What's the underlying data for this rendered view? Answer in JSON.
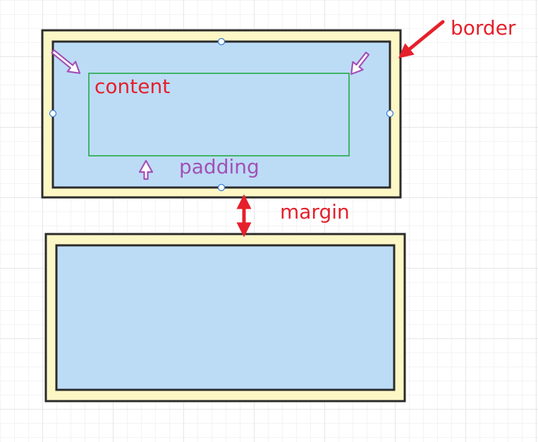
{
  "diagram": {
    "labels": {
      "border": "border",
      "content": "content",
      "padding": "padding",
      "margin": "margin"
    },
    "icons": {
      "border_arrow": "arrow-icon",
      "padding_arrows": "hollow-arrow-icon",
      "margin_arrow": "double-arrow-icon",
      "selection_handles": "circle-handle-icon"
    },
    "colors": {
      "border_fill": "#fdf7c6",
      "padding_fill": "#bcdcf6",
      "outline": "#2b2b2b",
      "content_outline": "#22aa44",
      "red_label": "#e5202b",
      "purple_label": "#a350b6",
      "handle": "#3a7fd6"
    }
  }
}
